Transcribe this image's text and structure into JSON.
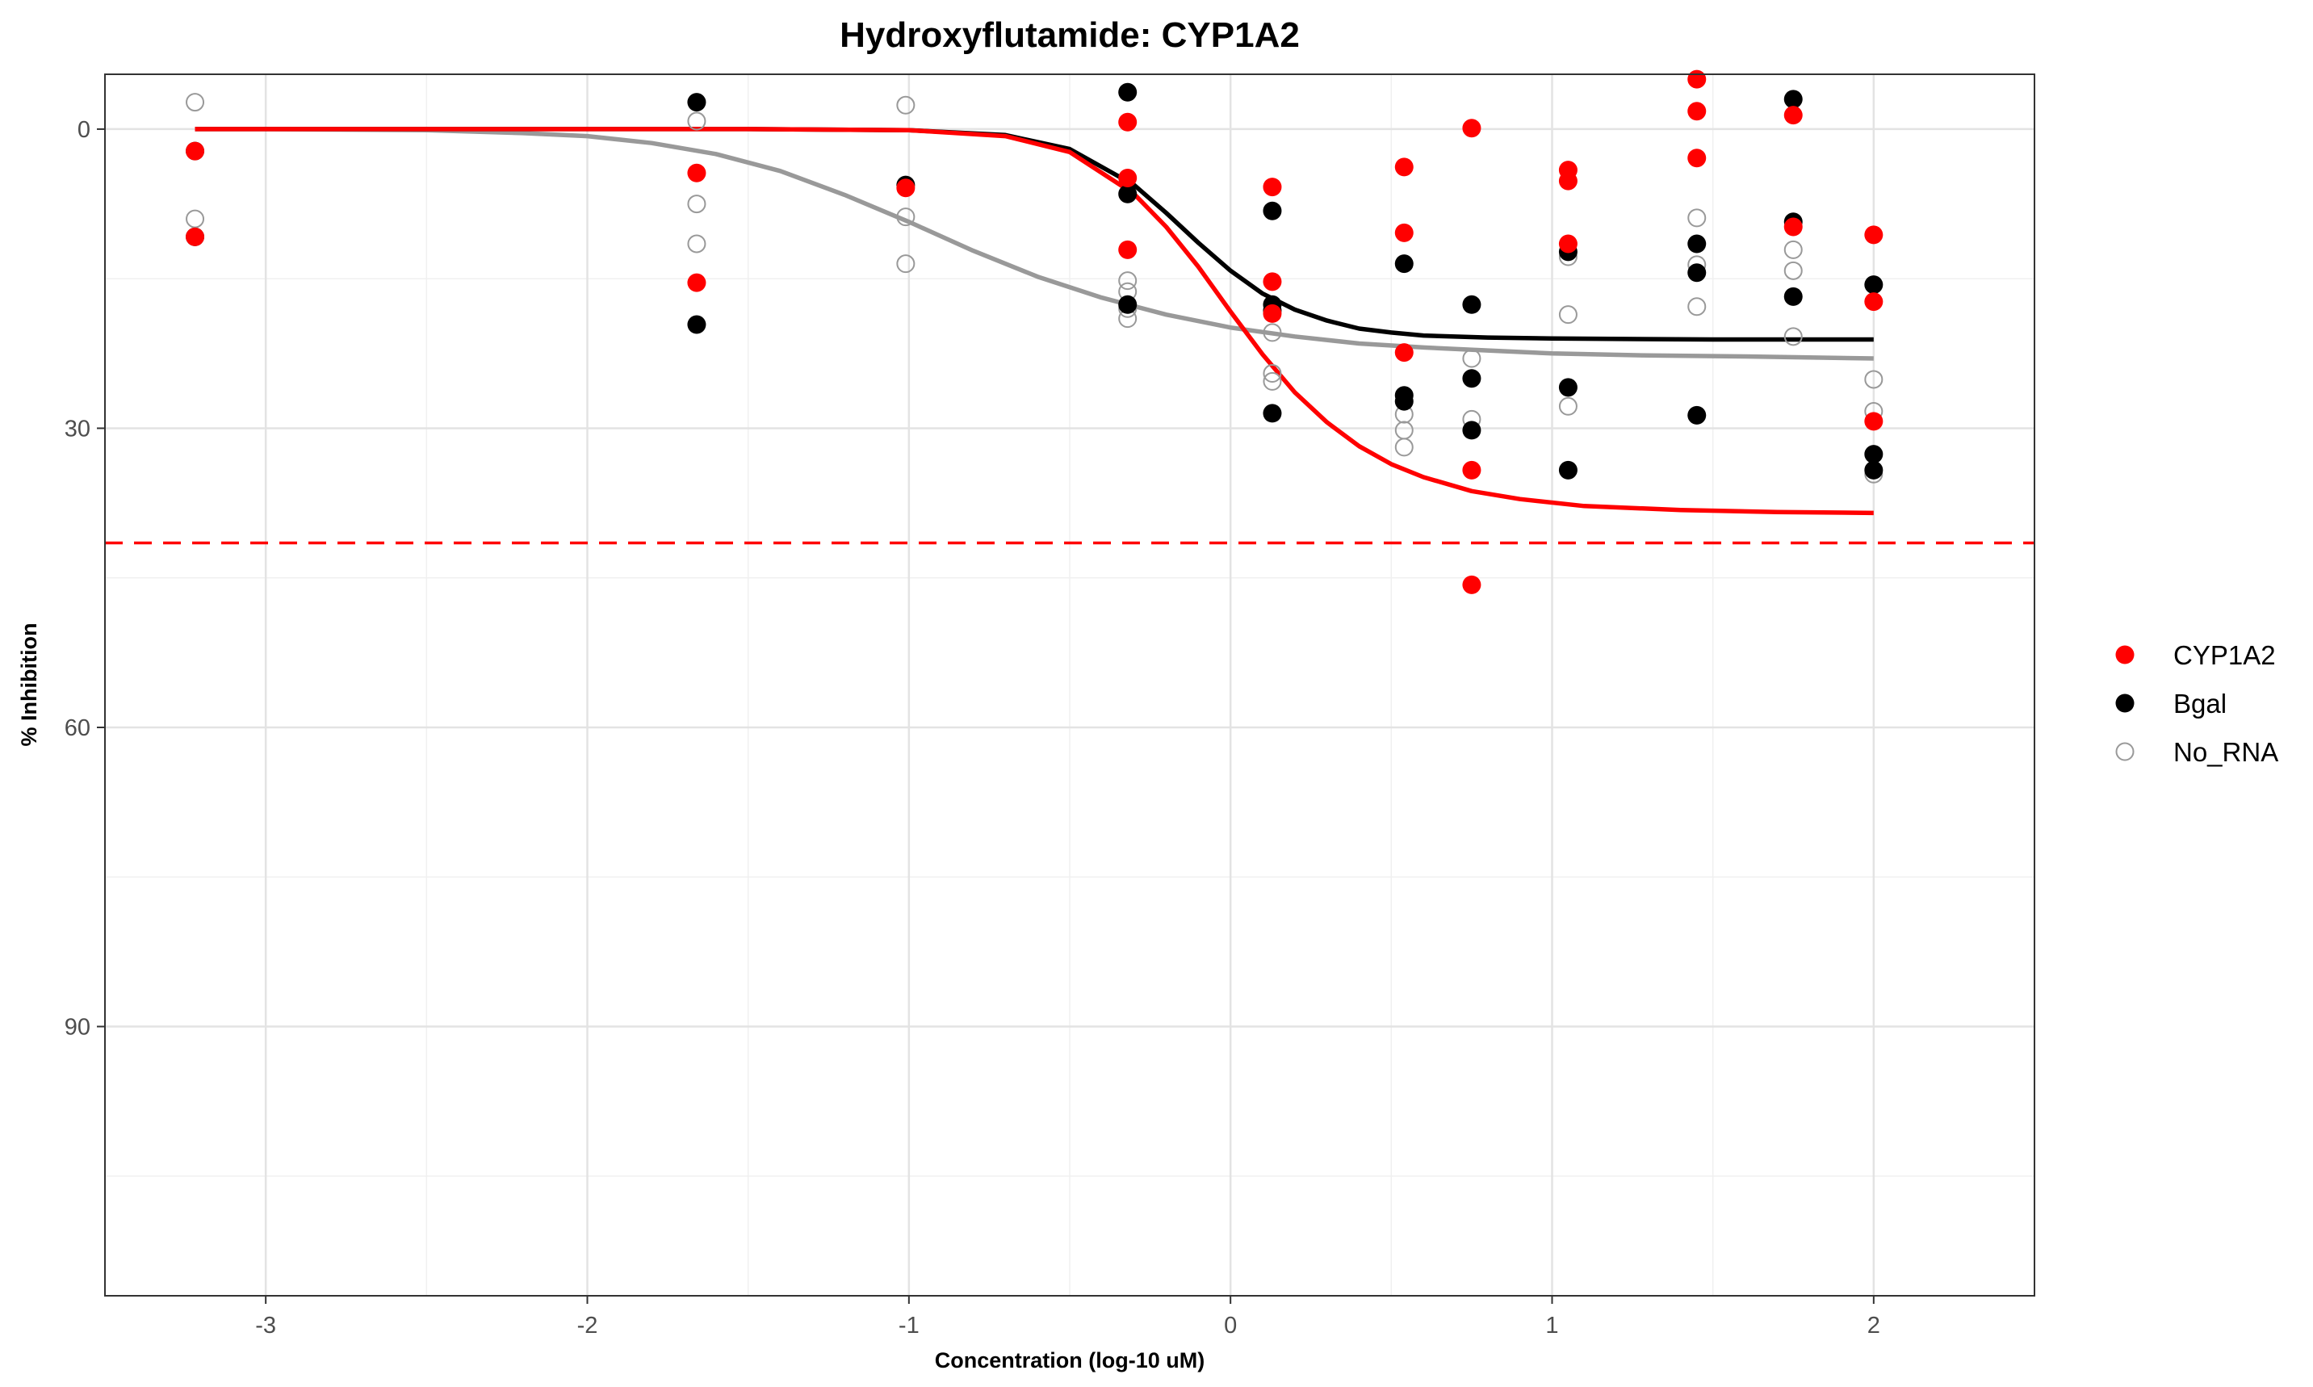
{
  "chart_data": {
    "type": "scatter",
    "title": "Hydroxyflutamide: CYP1A2",
    "xlabel": "Concentration (log-10 uM)",
    "ylabel": "% Inhibition",
    "xlim": [
      -3.5,
      2.5
    ],
    "ylim": [
      117,
      -5.5
    ],
    "y_reversed": true,
    "x_ticks": [
      -3,
      -2,
      -1,
      0,
      1,
      2
    ],
    "x_tick_labels": [
      "-3",
      "-2",
      "-1",
      "0",
      "1",
      "2"
    ],
    "y_ticks": [
      0,
      30,
      60,
      90
    ],
    "y_tick_labels": [
      "0",
      "30",
      "60",
      "90"
    ],
    "grid": true,
    "legend_position": "right",
    "reference_line": {
      "y": 41.5,
      "style": "dashed",
      "color": "#ff0000"
    },
    "series": [
      {
        "name": "CYP1A2",
        "color": "#ff0000",
        "marker": "filled-circle",
        "points": [
          [
            -3.22,
            2.2
          ],
          [
            -3.22,
            10.8
          ],
          [
            -1.66,
            4.4
          ],
          [
            -1.66,
            15.4
          ],
          [
            -1.01,
            5.9
          ],
          [
            -0.32,
            -0.7
          ],
          [
            -0.32,
            4.9
          ],
          [
            -0.32,
            12.1
          ],
          [
            0.13,
            5.8
          ],
          [
            0.13,
            15.3
          ],
          [
            0.13,
            18.5
          ],
          [
            0.54,
            3.8
          ],
          [
            0.54,
            10.4
          ],
          [
            0.54,
            22.4
          ],
          [
            0.75,
            -0.1
          ],
          [
            0.75,
            34.2
          ],
          [
            0.75,
            45.7
          ],
          [
            1.05,
            4.1
          ],
          [
            1.05,
            5.2
          ],
          [
            1.05,
            11.5
          ],
          [
            1.45,
            -5.0
          ],
          [
            1.45,
            -1.8
          ],
          [
            1.45,
            2.9
          ],
          [
            1.75,
            -1.4
          ],
          [
            1.75,
            9.8
          ],
          [
            2.0,
            10.6
          ],
          [
            2.0,
            17.3
          ],
          [
            2.0,
            29.3
          ]
        ],
        "curve": [
          [
            -3.22,
            0.0
          ],
          [
            -2.5,
            0.0
          ],
          [
            -2.0,
            0.0
          ],
          [
            -1.5,
            0.0
          ],
          [
            -1.0,
            0.1
          ],
          [
            -0.7,
            0.7
          ],
          [
            -0.5,
            2.3
          ],
          [
            -0.3,
            6.5
          ],
          [
            -0.2,
            9.8
          ],
          [
            -0.1,
            13.8
          ],
          [
            0.0,
            18.3
          ],
          [
            0.1,
            22.6
          ],
          [
            0.2,
            26.4
          ],
          [
            0.3,
            29.4
          ],
          [
            0.4,
            31.8
          ],
          [
            0.5,
            33.6
          ],
          [
            0.6,
            34.9
          ],
          [
            0.75,
            36.3
          ],
          [
            0.9,
            37.1
          ],
          [
            1.1,
            37.8
          ],
          [
            1.4,
            38.2
          ],
          [
            1.7,
            38.4
          ],
          [
            2.0,
            38.5
          ]
        ]
      },
      {
        "name": "Bgal",
        "color": "#000000",
        "marker": "filled-circle",
        "points": [
          [
            -3.22,
            2.2
          ],
          [
            -3.22,
            10.8
          ],
          [
            -1.66,
            -2.7
          ],
          [
            -1.66,
            19.6
          ],
          [
            -1.01,
            5.6
          ],
          [
            -0.32,
            -3.7
          ],
          [
            -0.32,
            6.5
          ],
          [
            -0.32,
            17.6
          ],
          [
            0.13,
            8.2
          ],
          [
            0.13,
            17.6
          ],
          [
            0.13,
            18.2
          ],
          [
            0.13,
            28.5
          ],
          [
            0.54,
            13.5
          ],
          [
            0.54,
            26.7
          ],
          [
            0.54,
            27.3
          ],
          [
            0.75,
            17.6
          ],
          [
            0.75,
            25.0
          ],
          [
            0.75,
            30.2
          ],
          [
            1.05,
            12.3
          ],
          [
            1.05,
            25.9
          ],
          [
            1.05,
            34.2
          ],
          [
            1.45,
            11.5
          ],
          [
            1.45,
            14.4
          ],
          [
            1.45,
            28.7
          ],
          [
            1.75,
            -3.0
          ],
          [
            1.75,
            9.3
          ],
          [
            1.75,
            16.8
          ],
          [
            2.0,
            15.6
          ],
          [
            2.0,
            32.6
          ],
          [
            2.0,
            34.2
          ]
        ],
        "curve": [
          [
            -3.22,
            0.0
          ],
          [
            -2.5,
            0.0
          ],
          [
            -2.0,
            0.0
          ],
          [
            -1.5,
            0.0
          ],
          [
            -1.0,
            0.1
          ],
          [
            -0.7,
            0.6
          ],
          [
            -0.5,
            2.0
          ],
          [
            -0.3,
            5.6
          ],
          [
            -0.2,
            8.4
          ],
          [
            -0.1,
            11.4
          ],
          [
            0.0,
            14.2
          ],
          [
            0.1,
            16.5
          ],
          [
            0.2,
            18.1
          ],
          [
            0.3,
            19.2
          ],
          [
            0.4,
            20.0
          ],
          [
            0.5,
            20.4
          ],
          [
            0.6,
            20.7
          ],
          [
            0.8,
            20.9
          ],
          [
            1.0,
            21.0
          ],
          [
            1.5,
            21.1
          ],
          [
            2.0,
            21.1
          ]
        ]
      },
      {
        "name": "No_RNA",
        "color": "#999999",
        "marker": "open-circle",
        "points": [
          [
            -3.22,
            -2.7
          ],
          [
            -3.22,
            9.0
          ],
          [
            -1.66,
            -0.8
          ],
          [
            -1.66,
            7.5
          ],
          [
            -1.66,
            11.5
          ],
          [
            -1.01,
            -2.4
          ],
          [
            -1.01,
            8.8
          ],
          [
            -1.01,
            13.5
          ],
          [
            -0.32,
            15.2
          ],
          [
            -0.32,
            16.3
          ],
          [
            -0.32,
            18.0
          ],
          [
            -0.32,
            19.0
          ],
          [
            0.13,
            20.4
          ],
          [
            0.13,
            24.5
          ],
          [
            0.13,
            25.3
          ],
          [
            0.54,
            28.6
          ],
          [
            0.54,
            30.2
          ],
          [
            0.54,
            31.9
          ],
          [
            0.75,
            23.0
          ],
          [
            0.75,
            29.1
          ],
          [
            1.05,
            12.8
          ],
          [
            1.05,
            18.6
          ],
          [
            1.05,
            27.8
          ],
          [
            1.45,
            8.9
          ],
          [
            1.45,
            13.6
          ],
          [
            1.45,
            17.8
          ],
          [
            1.75,
            12.1
          ],
          [
            1.75,
            14.2
          ],
          [
            1.75,
            20.8
          ],
          [
            2.0,
            25.1
          ],
          [
            2.0,
            28.3
          ],
          [
            2.0,
            34.6
          ]
        ],
        "curve": [
          [
            -3.22,
            0.0
          ],
          [
            -3.0,
            0.0
          ],
          [
            -2.5,
            0.1
          ],
          [
            -2.2,
            0.4
          ],
          [
            -2.0,
            0.7
          ],
          [
            -1.8,
            1.4
          ],
          [
            -1.6,
            2.5
          ],
          [
            -1.4,
            4.2
          ],
          [
            -1.2,
            6.6
          ],
          [
            -1.0,
            9.3
          ],
          [
            -0.8,
            12.2
          ],
          [
            -0.6,
            14.8
          ],
          [
            -0.4,
            16.9
          ],
          [
            -0.2,
            18.6
          ],
          [
            0.0,
            19.9
          ],
          [
            0.2,
            20.8
          ],
          [
            0.4,
            21.5
          ],
          [
            0.6,
            21.9
          ],
          [
            0.8,
            22.2
          ],
          [
            1.0,
            22.5
          ],
          [
            1.3,
            22.7
          ],
          [
            1.6,
            22.8
          ],
          [
            2.0,
            23.0
          ]
        ]
      }
    ]
  }
}
